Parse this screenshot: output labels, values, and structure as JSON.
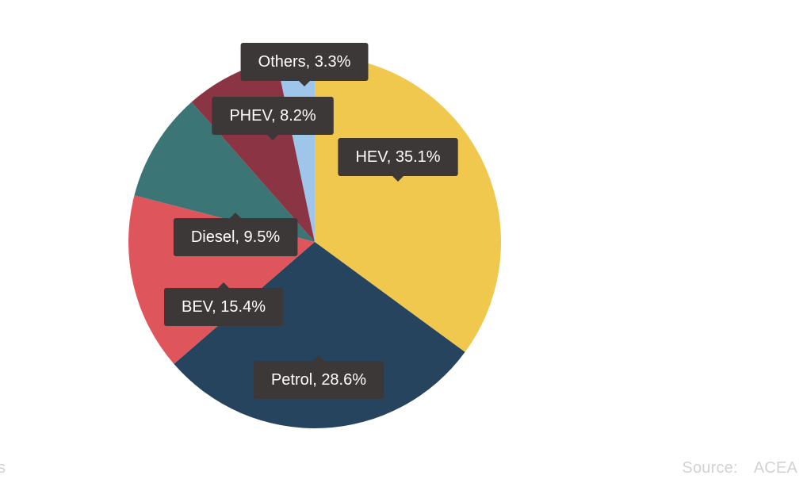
{
  "chart_data": {
    "type": "pie",
    "slices": [
      {
        "label": "HEV",
        "value": 35.1,
        "display": "HEV, 35.1%",
        "color": "#f0c84e"
      },
      {
        "label": "Petrol",
        "value": 28.6,
        "display": "Petrol, 28.6%",
        "color": "#27445f"
      },
      {
        "label": "BEV",
        "value": 15.4,
        "display": "BEV, 15.4%",
        "color": "#de555b"
      },
      {
        "label": "Diesel",
        "value": 9.5,
        "display": "Diesel, 9.5%",
        "color": "#3c7575"
      },
      {
        "label": "PHEV",
        "value": 8.2,
        "display": "PHEV, 8.2%",
        "color": "#8b3443"
      },
      {
        "label": "Others",
        "value": 3.3,
        "display": "Others, 3.3%",
        "color": "#9ec6ea"
      }
    ],
    "label_style": "dark-callout"
  },
  "footer": {
    "source_label": "Source:",
    "source_value": "ACEA",
    "left_fragment": "s"
  }
}
